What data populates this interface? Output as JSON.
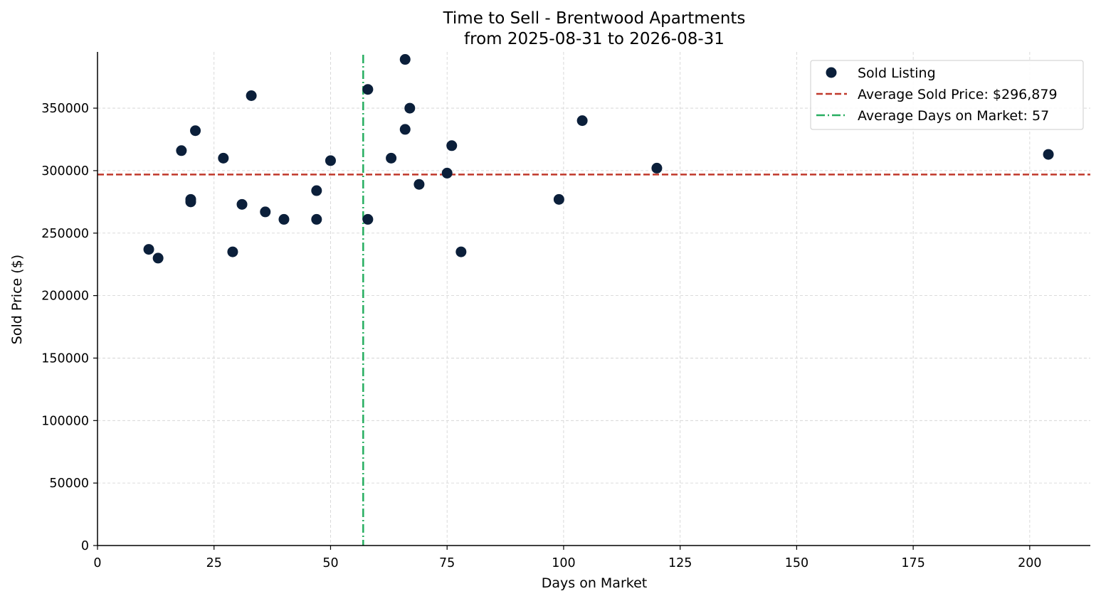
{
  "chart_data": {
    "type": "scatter",
    "title": "Time to Sell - Brentwood Apartments",
    "subtitle": "from 2025-08-31 to 2026-08-31",
    "xlabel": "Days on Market",
    "ylabel": "Sold Price ($)",
    "xlim": [
      0,
      213
    ],
    "ylim": [
      0,
      395000
    ],
    "xticks": [
      0,
      25,
      50,
      75,
      100,
      125,
      150,
      175,
      200
    ],
    "yticks": [
      0,
      50000,
      100000,
      150000,
      200000,
      250000,
      300000,
      350000
    ],
    "grid": true,
    "legend_position": "top-right",
    "series": [
      {
        "name": "Sold Listing",
        "color": "#0b1f3a",
        "points": [
          {
            "x": 11,
            "y": 237000
          },
          {
            "x": 13,
            "y": 230000
          },
          {
            "x": 18,
            "y": 316000
          },
          {
            "x": 20,
            "y": 277000
          },
          {
            "x": 20,
            "y": 275000
          },
          {
            "x": 21,
            "y": 332000
          },
          {
            "x": 27,
            "y": 310000
          },
          {
            "x": 29,
            "y": 235000
          },
          {
            "x": 31,
            "y": 273000
          },
          {
            "x": 33,
            "y": 360000
          },
          {
            "x": 36,
            "y": 267000
          },
          {
            "x": 40,
            "y": 261000
          },
          {
            "x": 47,
            "y": 284000
          },
          {
            "x": 47,
            "y": 261000
          },
          {
            "x": 50,
            "y": 308000
          },
          {
            "x": 58,
            "y": 365000
          },
          {
            "x": 58,
            "y": 261000
          },
          {
            "x": 63,
            "y": 310000
          },
          {
            "x": 66,
            "y": 389000
          },
          {
            "x": 66,
            "y": 333000
          },
          {
            "x": 67,
            "y": 350000
          },
          {
            "x": 69,
            "y": 289000
          },
          {
            "x": 75,
            "y": 298000
          },
          {
            "x": 76,
            "y": 320000
          },
          {
            "x": 78,
            "y": 235000
          },
          {
            "x": 99,
            "y": 277000
          },
          {
            "x": 104,
            "y": 340000
          },
          {
            "x": 120,
            "y": 302000
          },
          {
            "x": 204,
            "y": 313000
          }
        ]
      }
    ],
    "reference_lines": [
      {
        "name": "Average Sold Price: $296,879",
        "orientation": "horizontal",
        "value": 296879,
        "color": "#c0392b",
        "style": "dashed"
      },
      {
        "name": "Average Days on Market: 57",
        "orientation": "vertical",
        "value": 57,
        "color": "#27ae60",
        "style": "dashdot"
      }
    ],
    "legend": [
      {
        "label": "Sold Listing",
        "marker": "dot",
        "color": "#0b1f3a"
      },
      {
        "label": "Average Sold Price: $296,879",
        "marker": "dashed-line",
        "color": "#c0392b"
      },
      {
        "label": "Average Days on Market: 57",
        "marker": "dashdot-line",
        "color": "#27ae60"
      }
    ]
  }
}
